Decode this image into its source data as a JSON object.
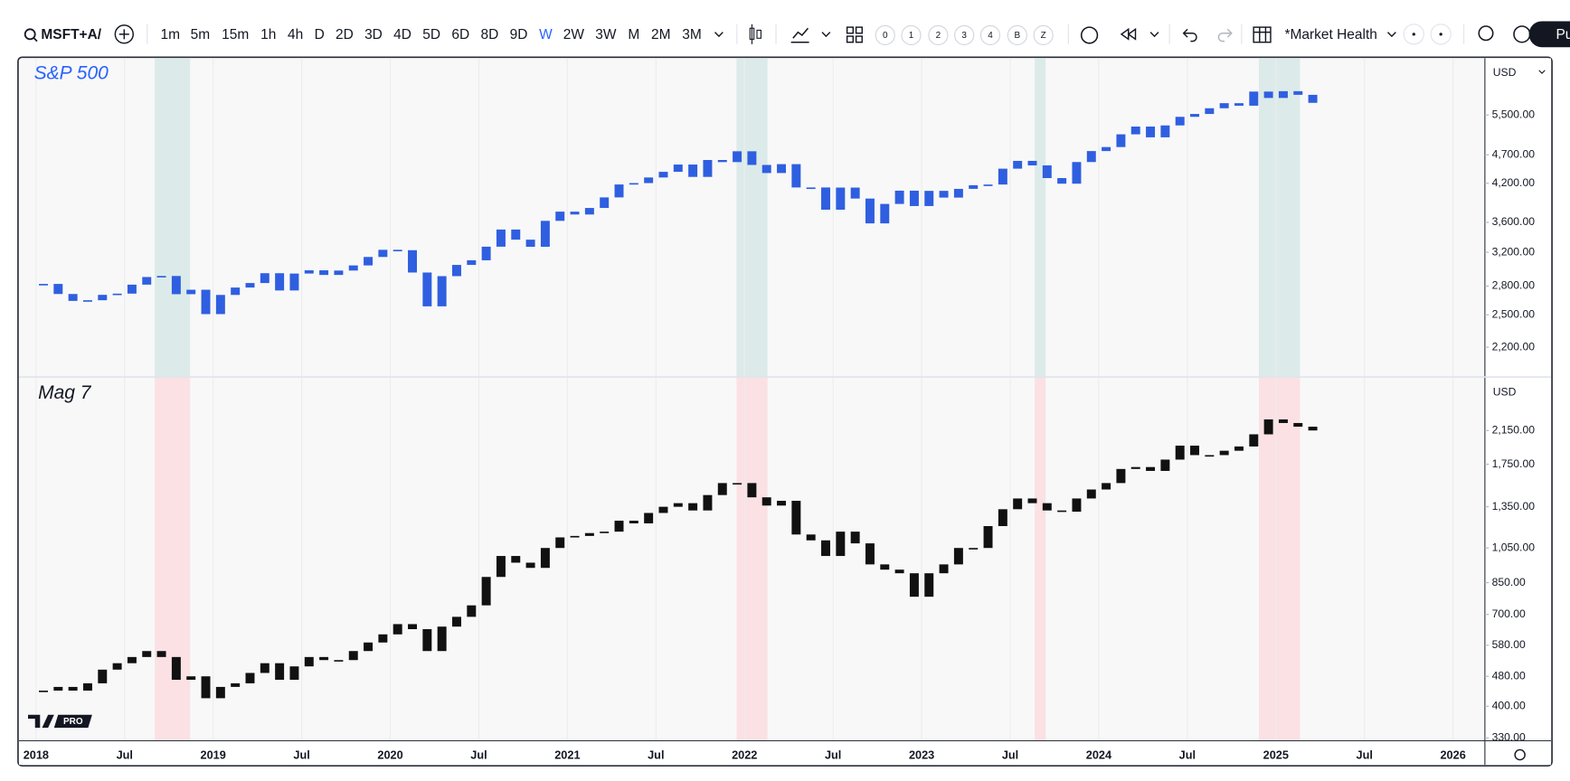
{
  "toolbar": {
    "symbol": "MSFT+A/",
    "intervals": [
      "1m",
      "5m",
      "15m",
      "1h",
      "4h",
      "D",
      "2D",
      "3D",
      "4D",
      "5D",
      "6D",
      "8D",
      "9D",
      "W",
      "2W",
      "3W",
      "M",
      "2M",
      "3M"
    ],
    "active_interval": "W",
    "favorites": [
      "0",
      "1",
      "2",
      "3",
      "4",
      "B",
      "Z"
    ],
    "layout_name": "*Market Health",
    "publish": "Pu"
  },
  "watermark": "PRO",
  "chart_data": [
    {
      "type": "candlestick",
      "title": "S&P 500",
      "currency": "USD",
      "color": "#2f5fe0",
      "band_color": "#dcebea",
      "log_scale": true,
      "categories": [
        "2018-01",
        "2018-02",
        "2018-03",
        "2018-04",
        "2018-05",
        "2018-06",
        "2018-07",
        "2018-08",
        "2018-09",
        "2018-10",
        "2018-11",
        "2018-12",
        "2019-01",
        "2019-02",
        "2019-03",
        "2019-04",
        "2019-05",
        "2019-06",
        "2019-07",
        "2019-08",
        "2019-09",
        "2019-10",
        "2019-11",
        "2019-12",
        "2020-01",
        "2020-02",
        "2020-03",
        "2020-04",
        "2020-05",
        "2020-06",
        "2020-07",
        "2020-08",
        "2020-09",
        "2020-10",
        "2020-11",
        "2020-12",
        "2021-01",
        "2021-02",
        "2021-03",
        "2021-04",
        "2021-05",
        "2021-06",
        "2021-07",
        "2021-08",
        "2021-09",
        "2021-10",
        "2021-11",
        "2021-12",
        "2022-01",
        "2022-02",
        "2022-03",
        "2022-04",
        "2022-05",
        "2022-06",
        "2022-07",
        "2022-08",
        "2022-09",
        "2022-10",
        "2022-11",
        "2022-12",
        "2023-01",
        "2023-02",
        "2023-03",
        "2023-04",
        "2023-05",
        "2023-06",
        "2023-07",
        "2023-08",
        "2023-09",
        "2023-10",
        "2023-11",
        "2023-12",
        "2024-01",
        "2024-02",
        "2024-03",
        "2024-04",
        "2024-05",
        "2024-06",
        "2024-07",
        "2024-08",
        "2024-09",
        "2024-10",
        "2024-11",
        "2024-12",
        "2025-01",
        "2025-02",
        "2025-03"
      ],
      "values": [
        2824,
        2714,
        2641,
        2648,
        2705,
        2718,
        2816,
        2902,
        2914,
        2712,
        2760,
        2507,
        2704,
        2784,
        2834,
        2946,
        2752,
        2942,
        2980,
        2926,
        2977,
        3038,
        3141,
        3231,
        3226,
        2954,
        2585,
        2912,
        3044,
        3100,
        3271,
        3500,
        3363,
        3270,
        3622,
        3756,
        3714,
        3811,
        3973,
        4181,
        4204,
        4298,
        4395,
        4523,
        4308,
        4605,
        4567,
        4766,
        4516,
        4374,
        4530,
        4132,
        4132,
        3785,
        4130,
        3955,
        3586,
        3872,
        4080,
        3840,
        4077,
        3970,
        4109,
        4169,
        4180,
        4450,
        4589,
        4508,
        4288,
        4194,
        4568,
        4770,
        4846,
        5096,
        5254,
        5036,
        5278,
        5460,
        5522,
        5648,
        5762,
        5705,
        6032,
        5882,
        6041,
        5955,
        5770
      ],
      "shaded_ranges": [
        [
          2018.67,
          2018.87
        ],
        [
          2021.955,
          2022.13
        ],
        [
          2023.638,
          2023.7
        ],
        [
          2024.904,
          2025.136
        ]
      ],
      "xlim": [
        2017.904,
        2026.18
      ],
      "ylim": [
        1960,
        6880
      ],
      "yticks": [
        {
          "value": 5500,
          "label": "5,500.00"
        },
        {
          "value": 4700,
          "label": "4,700.00"
        },
        {
          "value": 4200,
          "label": "4,200.00"
        },
        {
          "value": 3600,
          "label": "3,600.00"
        },
        {
          "value": 3200,
          "label": "3,200.00"
        },
        {
          "value": 2800,
          "label": "2,800.00"
        },
        {
          "value": 2500,
          "label": "2,500.00"
        },
        {
          "value": 2200,
          "label": "2,200.00"
        }
      ]
    },
    {
      "type": "candlestick",
      "title": "Mag 7",
      "currency": "USD",
      "color": "#111111",
      "band_color": "#fbe1e4",
      "log_scale": true,
      "categories": [
        "2018-01",
        "2018-02",
        "2018-03",
        "2018-04",
        "2018-05",
        "2018-06",
        "2018-07",
        "2018-08",
        "2018-09",
        "2018-10",
        "2018-11",
        "2018-12",
        "2019-01",
        "2019-02",
        "2019-03",
        "2019-04",
        "2019-05",
        "2019-06",
        "2019-07",
        "2019-08",
        "2019-09",
        "2019-10",
        "2019-11",
        "2019-12",
        "2020-01",
        "2020-02",
        "2020-03",
        "2020-04",
        "2020-05",
        "2020-06",
        "2020-07",
        "2020-08",
        "2020-09",
        "2020-10",
        "2020-11",
        "2020-12",
        "2021-01",
        "2021-02",
        "2021-03",
        "2021-04",
        "2021-05",
        "2021-06",
        "2021-07",
        "2021-08",
        "2021-09",
        "2021-10",
        "2021-11",
        "2021-12",
        "2022-01",
        "2022-02",
        "2022-03",
        "2022-04",
        "2022-05",
        "2022-06",
        "2022-07",
        "2022-08",
        "2022-09",
        "2022-10",
        "2022-11",
        "2022-12",
        "2023-01",
        "2023-02",
        "2023-03",
        "2023-04",
        "2023-05",
        "2023-06",
        "2023-07",
        "2023-08",
        "2023-09",
        "2023-10",
        "2023-11",
        "2023-12",
        "2024-01",
        "2024-02",
        "2024-03",
        "2024-04",
        "2024-05",
        "2024-06",
        "2024-07",
        "2024-08",
        "2024-09",
        "2024-10",
        "2024-11",
        "2024-12",
        "2025-01",
        "2025-02",
        "2025-03"
      ],
      "values": [
        440,
        450,
        440,
        460,
        500,
        520,
        540,
        560,
        540,
        470,
        480,
        420,
        450,
        460,
        490,
        520,
        470,
        510,
        540,
        530,
        530,
        560,
        590,
        620,
        660,
        640,
        560,
        650,
        690,
        740,
        880,
        1000,
        960,
        930,
        1050,
        1120,
        1130,
        1150,
        1160,
        1240,
        1220,
        1300,
        1350,
        1380,
        1320,
        1450,
        1560,
        1560,
        1430,
        1360,
        1400,
        1140,
        1100,
        1000,
        1160,
        1080,
        950,
        920,
        900,
        780,
        900,
        950,
        1050,
        1050,
        1200,
        1330,
        1420,
        1380,
        1320,
        1310,
        1420,
        1500,
        1560,
        1700,
        1720,
        1680,
        1800,
        1960,
        1850,
        1850,
        1900,
        1950,
        2100,
        2300,
        2250,
        2200,
        2150
      ],
      "shaded_ranges": [
        [
          2018.67,
          2018.87
        ],
        [
          2021.955,
          2022.13
        ],
        [
          2023.638,
          2023.7
        ],
        [
          2024.904,
          2025.136
        ]
      ],
      "xlim": [
        2017.904,
        2026.18
      ],
      "xticks": [
        {
          "value": 2018,
          "label": "2018"
        },
        {
          "value": 2018.5,
          "label": "Jul"
        },
        {
          "value": 2019,
          "label": "2019"
        },
        {
          "value": 2019.5,
          "label": "Jul"
        },
        {
          "value": 2020,
          "label": "2020"
        },
        {
          "value": 2020.5,
          "label": "Jul"
        },
        {
          "value": 2021,
          "label": "2021"
        },
        {
          "value": 2021.5,
          "label": "Jul"
        },
        {
          "value": 2022,
          "label": "2022"
        },
        {
          "value": 2022.5,
          "label": "Jul"
        },
        {
          "value": 2023,
          "label": "2023"
        },
        {
          "value": 2023.5,
          "label": "Jul"
        },
        {
          "value": 2024,
          "label": "2024"
        },
        {
          "value": 2024.5,
          "label": "Jul"
        },
        {
          "value": 2025,
          "label": "2025"
        },
        {
          "value": 2025.5,
          "label": "Jul"
        },
        {
          "value": 2026,
          "label": "2026"
        }
      ],
      "ylim": [
        324,
        2970
      ],
      "yticks": [
        {
          "value": 2150,
          "label": "2,150.00"
        },
        {
          "value": 1750,
          "label": "1,750.00"
        },
        {
          "value": 1350,
          "label": "1,350.00"
        },
        {
          "value": 1050,
          "label": "1,050.00"
        },
        {
          "value": 850,
          "label": "850.00"
        },
        {
          "value": 700,
          "label": "700.00"
        },
        {
          "value": 580,
          "label": "580.00"
        },
        {
          "value": 480,
          "label": "480.00"
        },
        {
          "value": 400,
          "label": "400.00"
        },
        {
          "value": 330,
          "label": "330.00"
        }
      ]
    }
  ]
}
